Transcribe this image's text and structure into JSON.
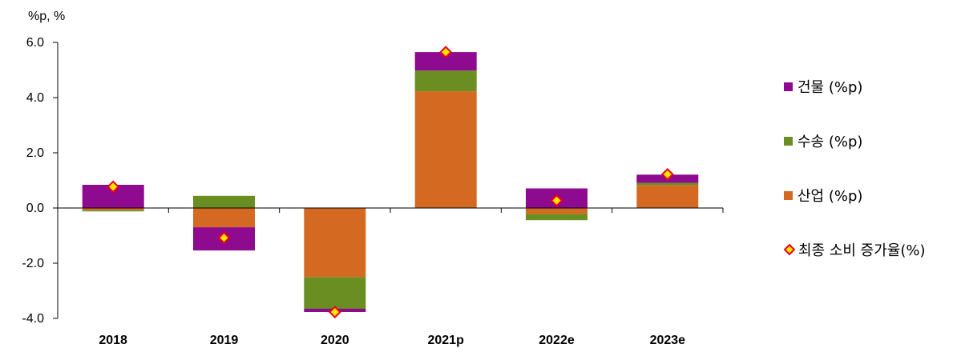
{
  "chart_data": {
    "type": "bar",
    "stacked": true,
    "unit_label": "%p, %",
    "categories": [
      "2018",
      "2019",
      "2020",
      "2021p",
      "2022e",
      "2023e"
    ],
    "ylim": [
      -4.0,
      6.0
    ],
    "yticks": [
      "6.0",
      "4.0",
      "2.0",
      "0.0",
      "-2.0",
      "-4.0"
    ],
    "ytick_values": [
      6,
      4,
      2,
      0,
      -2,
      -4
    ],
    "grid": false,
    "legend_position": "right",
    "series": [
      {
        "name": "산업 (%p)",
        "color": "#D46A21",
        "values": [
          -0.08,
          -0.7,
          -2.5,
          4.23,
          -0.22,
          0.83
        ]
      },
      {
        "name": "수송 (%p)",
        "color": "#6B8E23",
        "values": [
          -0.04,
          0.44,
          -1.15,
          0.75,
          -0.22,
          0.08
        ]
      },
      {
        "name": "건물 (%p)",
        "color": "#8E0A8E",
        "values": [
          0.84,
          -0.84,
          -0.12,
          0.67,
          0.71,
          0.3
        ]
      }
    ],
    "line_series": {
      "name": "최종 소비 증가율(%)",
      "marker": "diamond",
      "fill": "#FFE400",
      "stroke": "#E8001C",
      "values": [
        0.77,
        -1.08,
        -3.77,
        5.65,
        0.27,
        1.22
      ]
    }
  }
}
